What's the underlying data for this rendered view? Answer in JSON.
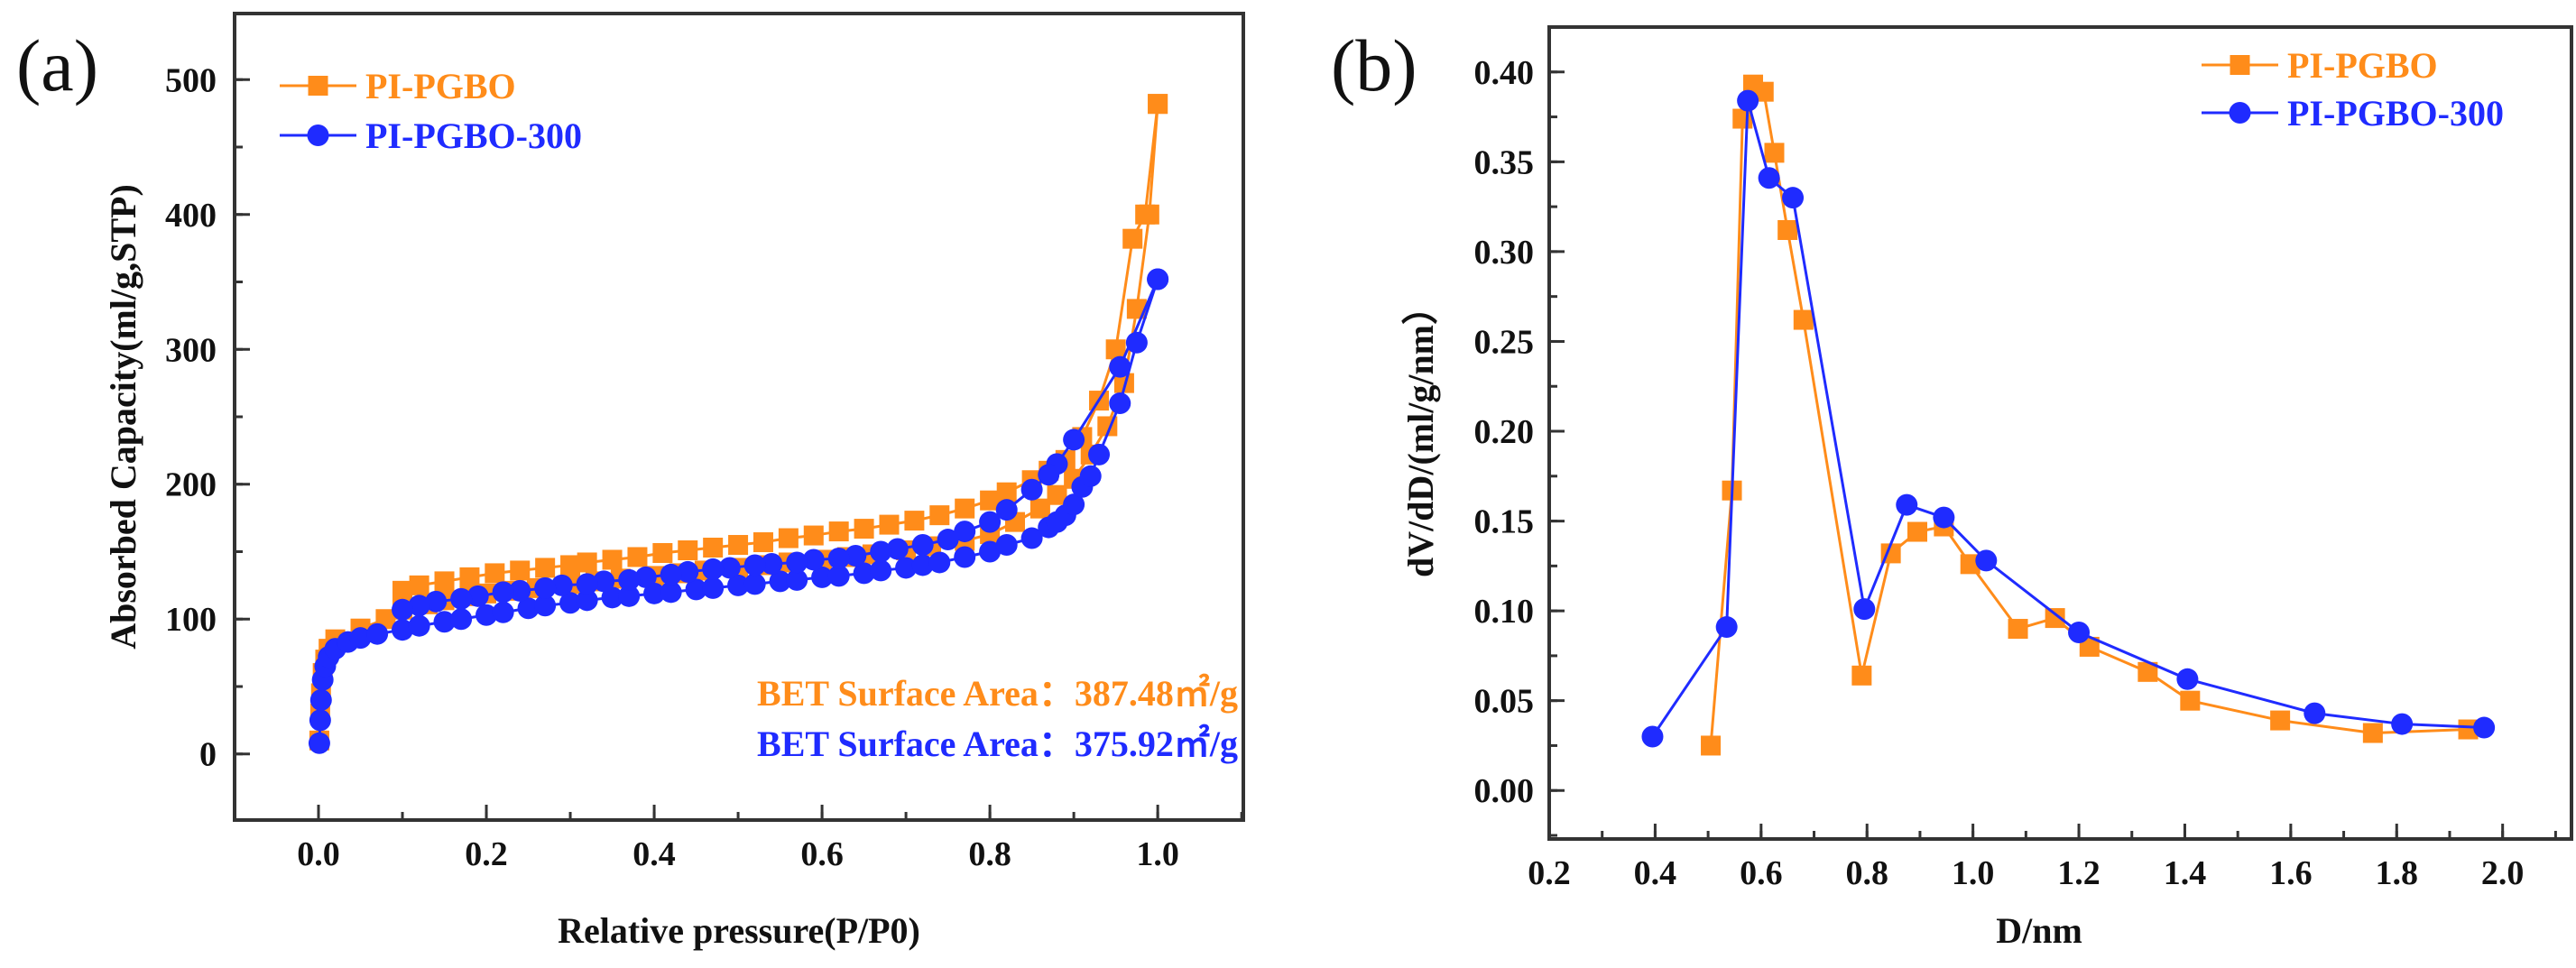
{
  "colors": {
    "orange": "#FF8C1A",
    "blue": "#1F2BFF",
    "axis": "#333333"
  },
  "chart_data": [
    {
      "type": "scatter",
      "panel_label": "(a)",
      "title": "",
      "xlabel": "Relative pressure(P/P0)",
      "ylabel": "Absorbed Capacity(ml/g,STP)",
      "xlim": [
        -0.1,
        1.102
      ],
      "ylim": [
        -49,
        549
      ],
      "xticks": [
        "0.0",
        "0.2",
        "0.4",
        "0.6",
        "0.8",
        "1.0"
      ],
      "xtick_values": [
        0,
        0.2,
        0.4,
        0.6,
        0.8,
        1.0
      ],
      "yticks": [
        "0",
        "100",
        "200",
        "300",
        "400",
        "500"
      ],
      "ytick_values": [
        0,
        100,
        200,
        300,
        400,
        500
      ],
      "grid": false,
      "legend_position": "top-left",
      "annotations": [
        {
          "label": "BET Surface Area：",
          "value": "387.48㎡/g",
          "series": "PI-PGBO"
        },
        {
          "label": "BET Surface Area：",
          "value": "375.92㎡/g",
          "series": "PI-PGBO-300"
        }
      ],
      "series": [
        {
          "name": "PI-PGBO",
          "marker": "square",
          "color_key": "orange",
          "adsorption": [
            [
              0.001,
              10
            ],
            [
              0.002,
              30
            ],
            [
              0.003,
              45
            ],
            [
              0.005,
              60
            ],
            [
              0.008,
              70
            ],
            [
              0.012,
              78
            ],
            [
              0.02,
              85
            ],
            [
              0.05,
              93
            ],
            [
              0.08,
              100
            ],
            [
              0.1,
              107
            ],
            [
              0.13,
              111
            ],
            [
              0.15,
              114
            ],
            [
              0.18,
              117
            ],
            [
              0.2,
              119
            ],
            [
              0.23,
              121
            ],
            [
              0.26,
              123
            ],
            [
              0.3,
              126
            ],
            [
              0.33,
              128
            ],
            [
              0.36,
              130
            ],
            [
              0.4,
              132
            ],
            [
              0.43,
              134
            ],
            [
              0.46,
              136
            ],
            [
              0.5,
              138
            ],
            [
              0.53,
              140
            ],
            [
              0.56,
              142
            ],
            [
              0.6,
              144
            ],
            [
              0.63,
              146
            ],
            [
              0.66,
              148
            ],
            [
              0.7,
              151
            ],
            [
              0.73,
              154
            ],
            [
              0.77,
              158
            ],
            [
              0.8,
              163
            ],
            [
              0.83,
              172
            ],
            [
              0.86,
              182
            ],
            [
              0.88,
              192
            ],
            [
              0.9,
              204
            ],
            [
              0.92,
              222
            ],
            [
              0.94,
              243
            ],
            [
              0.96,
              275
            ],
            [
              0.975,
              330
            ],
            [
              0.99,
              400
            ],
            [
              1.0,
              482
            ]
          ],
          "desorption": [
            [
              1.0,
              482
            ],
            [
              0.985,
              400
            ],
            [
              0.97,
              382
            ],
            [
              0.95,
              300
            ],
            [
              0.93,
              262
            ],
            [
              0.91,
              235
            ],
            [
              0.89,
              218
            ],
            [
              0.87,
              210
            ],
            [
              0.85,
              203
            ],
            [
              0.82,
              194
            ],
            [
              0.8,
              188
            ],
            [
              0.77,
              182
            ],
            [
              0.74,
              177
            ],
            [
              0.71,
              173
            ],
            [
              0.68,
              170
            ],
            [
              0.65,
              167
            ],
            [
              0.62,
              165
            ],
            [
              0.59,
              162
            ],
            [
              0.56,
              160
            ],
            [
              0.53,
              157
            ],
            [
              0.5,
              155
            ],
            [
              0.47,
              153
            ],
            [
              0.44,
              151
            ],
            [
              0.41,
              149
            ],
            [
              0.38,
              146
            ],
            [
              0.35,
              144
            ],
            [
              0.32,
              142
            ],
            [
              0.3,
              140
            ],
            [
              0.27,
              138
            ],
            [
              0.24,
              136
            ],
            [
              0.21,
              134
            ],
            [
              0.18,
              131
            ],
            [
              0.15,
              128
            ],
            [
              0.12,
              125
            ],
            [
              0.1,
              121
            ]
          ]
        },
        {
          "name": "PI-PGBO-300",
          "marker": "circle",
          "color_key": "blue",
          "adsorption": [
            [
              0.001,
              8
            ],
            [
              0.002,
              25
            ],
            [
              0.003,
              40
            ],
            [
              0.005,
              55
            ],
            [
              0.008,
              65
            ],
            [
              0.012,
              72
            ],
            [
              0.02,
              78
            ],
            [
              0.035,
              83
            ],
            [
              0.05,
              86
            ],
            [
              0.07,
              89
            ],
            [
              0.1,
              92
            ],
            [
              0.12,
              95
            ],
            [
              0.15,
              98
            ],
            [
              0.17,
              100
            ],
            [
              0.2,
              103
            ],
            [
              0.22,
              105
            ],
            [
              0.25,
              108
            ],
            [
              0.27,
              110
            ],
            [
              0.3,
              112
            ],
            [
              0.32,
              114
            ],
            [
              0.35,
              116
            ],
            [
              0.37,
              117
            ],
            [
              0.4,
              119
            ],
            [
              0.42,
              120
            ],
            [
              0.45,
              122
            ],
            [
              0.47,
              123
            ],
            [
              0.5,
              125
            ],
            [
              0.52,
              126
            ],
            [
              0.55,
              128
            ],
            [
              0.57,
              129
            ],
            [
              0.6,
              131
            ],
            [
              0.62,
              132
            ],
            [
              0.65,
              134
            ],
            [
              0.67,
              136
            ],
            [
              0.7,
              138
            ],
            [
              0.72,
              140
            ],
            [
              0.74,
              142
            ],
            [
              0.77,
              146
            ],
            [
              0.8,
              150
            ],
            [
              0.82,
              155
            ],
            [
              0.85,
              160
            ],
            [
              0.87,
              168
            ],
            [
              0.88,
              172
            ],
            [
              0.89,
              177
            ],
            [
              0.9,
              185
            ],
            [
              0.91,
              198
            ],
            [
              0.92,
              206
            ],
            [
              0.93,
              222
            ],
            [
              0.955,
              260
            ],
            [
              0.975,
              305
            ],
            [
              1.0,
              352
            ]
          ],
          "desorption": [
            [
              1.0,
              352
            ],
            [
              0.955,
              287
            ],
            [
              0.9,
              233
            ],
            [
              0.88,
              215
            ],
            [
              0.87,
              207
            ],
            [
              0.85,
              196
            ],
            [
              0.82,
              181
            ],
            [
              0.8,
              172
            ],
            [
              0.77,
              165
            ],
            [
              0.75,
              159
            ],
            [
              0.72,
              155
            ],
            [
              0.69,
              152
            ],
            [
              0.67,
              150
            ],
            [
              0.64,
              147
            ],
            [
              0.62,
              145
            ],
            [
              0.59,
              144
            ],
            [
              0.57,
              142
            ],
            [
              0.54,
              141
            ],
            [
              0.52,
              140
            ],
            [
              0.49,
              138
            ],
            [
              0.47,
              137
            ],
            [
              0.44,
              135
            ],
            [
              0.42,
              133
            ],
            [
              0.39,
              131
            ],
            [
              0.37,
              129
            ],
            [
              0.34,
              128
            ],
            [
              0.32,
              126
            ],
            [
              0.29,
              125
            ],
            [
              0.27,
              123
            ],
            [
              0.24,
              121
            ],
            [
              0.22,
              120
            ],
            [
              0.19,
              117
            ],
            [
              0.17,
              115
            ],
            [
              0.14,
              113
            ],
            [
              0.12,
              110
            ],
            [
              0.1,
              107
            ]
          ]
        }
      ]
    },
    {
      "type": "line",
      "panel_label": "(b)",
      "title": "",
      "xlabel": "D/nm",
      "ylabel": "dV/dD/(ml/g/nm）",
      "xlim": [
        0.2,
        2.13
      ],
      "ylim": [
        -0.027,
        0.425
      ],
      "xticks": [
        "0.2",
        "0.4",
        "0.6",
        "0.8",
        "1.0",
        "1.2",
        "1.4",
        "1.6",
        "1.8",
        "2.0"
      ],
      "xtick_values": [
        0.2,
        0.4,
        0.6,
        0.8,
        1.0,
        1.2,
        1.4,
        1.6,
        1.8,
        2.0
      ],
      "yticks": [
        "0.00",
        "0.05",
        "0.10",
        "0.15",
        "0.20",
        "0.25",
        "0.30",
        "0.35",
        "0.40"
      ],
      "ytick_values": [
        0,
        0.05,
        0.1,
        0.15,
        0.2,
        0.25,
        0.3,
        0.35,
        0.4
      ],
      "grid": false,
      "legend_position": "top-right",
      "series": [
        {
          "name": "PI-PGBO",
          "marker": "square",
          "color_key": "orange",
          "points": [
            [
              0.505,
              0.025
            ],
            [
              0.545,
              0.167
            ],
            [
              0.565,
              0.374
            ],
            [
              0.585,
              0.393
            ],
            [
              0.605,
              0.389
            ],
            [
              0.625,
              0.355
            ],
            [
              0.65,
              0.312
            ],
            [
              0.68,
              0.262
            ],
            [
              0.79,
              0.064
            ],
            [
              0.845,
              0.132
            ],
            [
              0.895,
              0.144
            ],
            [
              0.945,
              0.147
            ],
            [
              0.995,
              0.126
            ],
            [
              1.085,
              0.09
            ],
            [
              1.155,
              0.096
            ],
            [
              1.22,
              0.08
            ],
            [
              1.33,
              0.066
            ],
            [
              1.41,
              0.05
            ],
            [
              1.58,
              0.039
            ],
            [
              1.755,
              0.032
            ],
            [
              1.935,
              0.034
            ]
          ]
        },
        {
          "name": "PI-PGBO-300",
          "marker": "circle",
          "color_key": "blue",
          "points": [
            [
              0.395,
              0.03
            ],
            [
              0.535,
              0.091
            ],
            [
              0.575,
              0.384
            ],
            [
              0.615,
              0.341
            ],
            [
              0.66,
              0.33
            ],
            [
              0.795,
              0.101
            ],
            [
              0.875,
              0.159
            ],
            [
              0.945,
              0.152
            ],
            [
              1.025,
              0.128
            ],
            [
              1.2,
              0.088
            ],
            [
              1.405,
              0.062
            ],
            [
              1.645,
              0.043
            ],
            [
              1.81,
              0.037
            ],
            [
              1.965,
              0.035
            ]
          ]
        }
      ]
    }
  ]
}
